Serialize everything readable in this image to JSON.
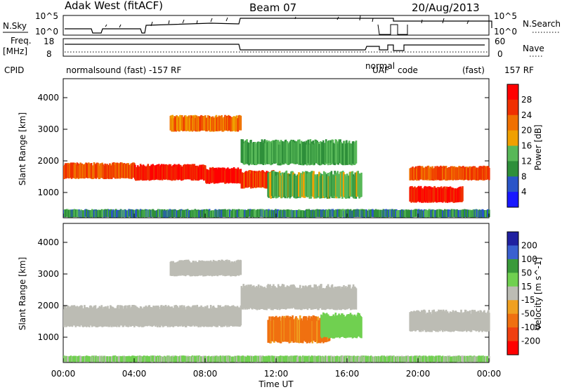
{
  "header": {
    "station": "Adak West (fitACF)",
    "beam": "Beam 07",
    "date": "20/Aug/2013"
  },
  "side_labels": {
    "nsky": "N.Sky",
    "nsearch": "N.Search",
    "freq_line1": "Freq.",
    "freq_line2": "[MHz]",
    "nave": "Nave",
    "cpid": "CPID"
  },
  "noise_axis": {
    "left": [
      "10^5",
      "10^0"
    ],
    "right": [
      "10^5",
      "10^0"
    ]
  },
  "freq_axis": {
    "left": [
      "18",
      "8"
    ],
    "right": [
      "60",
      "0"
    ]
  },
  "cpid_text": {
    "main": "normalsound (fast) -157 RF",
    "late_a": "normal",
    "late_b": "UAF",
    "late_c": "code",
    "late_d": "(fast)",
    "late_e": "157 RF"
  },
  "colors": {
    "power_scale": [
      "#1818ff",
      "#2a55c8",
      "#2e8f3a",
      "#58b858",
      "#f0a000",
      "#f07000",
      "#f03000",
      "#ff0000"
    ],
    "velocity_scale": [
      "#2020a0",
      "#3a60d0",
      "#3a9a3a",
      "#70d050",
      "#bcbcb4",
      "#f0a020",
      "#f07010",
      "#f04010",
      "#ff0000"
    ]
  },
  "chart_data": [
    {
      "type": "heatmap",
      "title": "Power",
      "ylabel": "Slant Range [km]",
      "yticks": [
        "1000",
        "2000",
        "3000",
        "4000"
      ],
      "xlabel": "",
      "colorbar_label": "Power [dB]",
      "colorbar_ticks": [
        "4",
        "8",
        "12",
        "16",
        "20",
        "24",
        "28"
      ],
      "ylim": [
        200,
        4600
      ],
      "clim": [
        0,
        32
      ],
      "time_range_hours": [
        0,
        24
      ],
      "bands": [
        {
          "t0": 0.0,
          "t1": 4.0,
          "r0": 1450,
          "r1": 1900,
          "level": 24
        },
        {
          "t0": 4.0,
          "t1": 8.0,
          "r0": 1400,
          "r1": 1850,
          "level": 28
        },
        {
          "t0": 8.0,
          "t1": 10.0,
          "r0": 1300,
          "r1": 1750,
          "level": 30
        },
        {
          "t0": 10.0,
          "t1": 12.0,
          "r0": 1150,
          "r1": 1650,
          "level": 26
        },
        {
          "t0": 11.5,
          "t1": 16.8,
          "r0": 850,
          "r1": 1600,
          "level": 14
        },
        {
          "t0": 6.0,
          "t1": 10.0,
          "r0": 2950,
          "r1": 3400,
          "level": 22
        },
        {
          "t0": 10.0,
          "t1": 16.5,
          "r0": 1900,
          "r1": 2600,
          "level": 12
        },
        {
          "t0": 19.5,
          "t1": 24.0,
          "r0": 1400,
          "r1": 1800,
          "level": 24
        },
        {
          "t0": 19.5,
          "t1": 22.5,
          "r0": 700,
          "r1": 1150,
          "level": 28
        },
        {
          "t0": 0.0,
          "t1": 24.0,
          "r0": 220,
          "r1": 450,
          "level": 10
        }
      ]
    },
    {
      "type": "heatmap",
      "title": "Velocity",
      "ylabel": "Slant Range [km]",
      "yticks": [
        "1000",
        "2000",
        "3000",
        "4000"
      ],
      "xlabel": "Time UT",
      "xticks": [
        "00:00",
        "04:00",
        "08:00",
        "12:00",
        "16:00",
        "20:00",
        "00:00"
      ],
      "colorbar_label": "Velocity [m s^-1]",
      "colorbar_ticks": [
        "200",
        "100",
        "50",
        "15",
        "-15",
        "-50",
        "-100",
        "-200"
      ],
      "ylim": [
        200,
        4600
      ],
      "time_range_hours": [
        0,
        24
      ],
      "bands": [
        {
          "t0": 0.0,
          "t1": 10.0,
          "r0": 1350,
          "r1": 1950,
          "velocity": 0
        },
        {
          "t0": 6.0,
          "t1": 10.0,
          "r0": 2950,
          "r1": 3400,
          "velocity": 0
        },
        {
          "t0": 10.0,
          "t1": 16.5,
          "r0": 1900,
          "r1": 2600,
          "velocity": 0
        },
        {
          "t0": 11.5,
          "t1": 15.0,
          "r0": 850,
          "r1": 1600,
          "velocity": -60
        },
        {
          "t0": 14.5,
          "t1": 16.8,
          "r0": 1000,
          "r1": 1700,
          "velocity": 30
        },
        {
          "t0": 19.5,
          "t1": 24.0,
          "r0": 1200,
          "r1": 1800,
          "velocity": 0
        },
        {
          "t0": 0.0,
          "t1": 24.0,
          "r0": 220,
          "r1": 400,
          "velocity": 20
        }
      ]
    }
  ]
}
